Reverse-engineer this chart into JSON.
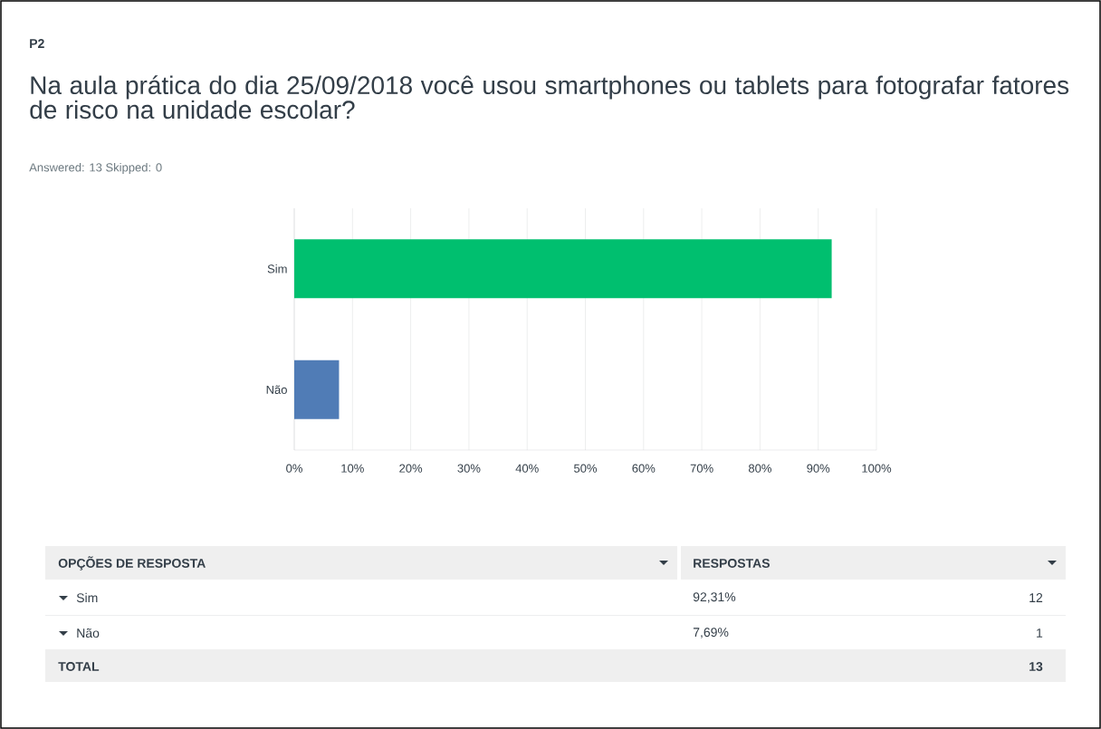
{
  "chart_data": {
    "type": "bar",
    "orientation": "horizontal",
    "title": "Na aula prática do dia 25/09/2018 você usou smartphones ou tablets para fotografar fatores de risco na unidade escolar?",
    "subtitle": "Answered: 13    Skipped: 0",
    "categories": [
      "Sim",
      "Não"
    ],
    "values": [
      92.31,
      7.69
    ],
    "colors": [
      "#00bf6f",
      "#507cb6"
    ],
    "xlim": [
      0,
      100
    ],
    "xticks": [
      {
        "value": 0,
        "label": "0%"
      },
      {
        "value": 10,
        "label": "10%"
      },
      {
        "value": 20,
        "label": "20%"
      },
      {
        "value": 30,
        "label": "30%"
      },
      {
        "value": 40,
        "label": "40%"
      },
      {
        "value": 50,
        "label": "50%"
      },
      {
        "value": 60,
        "label": "60%"
      },
      {
        "value": 70,
        "label": "70%"
      },
      {
        "value": 80,
        "label": "80%"
      },
      {
        "value": 90,
        "label": "90%"
      },
      {
        "value": 100,
        "label": "100%"
      }
    ],
    "grid": "x",
    "annotations": [
      "P2",
      "OPÇÕES DE RESPOSTA",
      "RESPOSTAS",
      "12",
      "1",
      "TOTAL",
      "13",
      "92,31%",
      "7,69%"
    ]
  }
}
